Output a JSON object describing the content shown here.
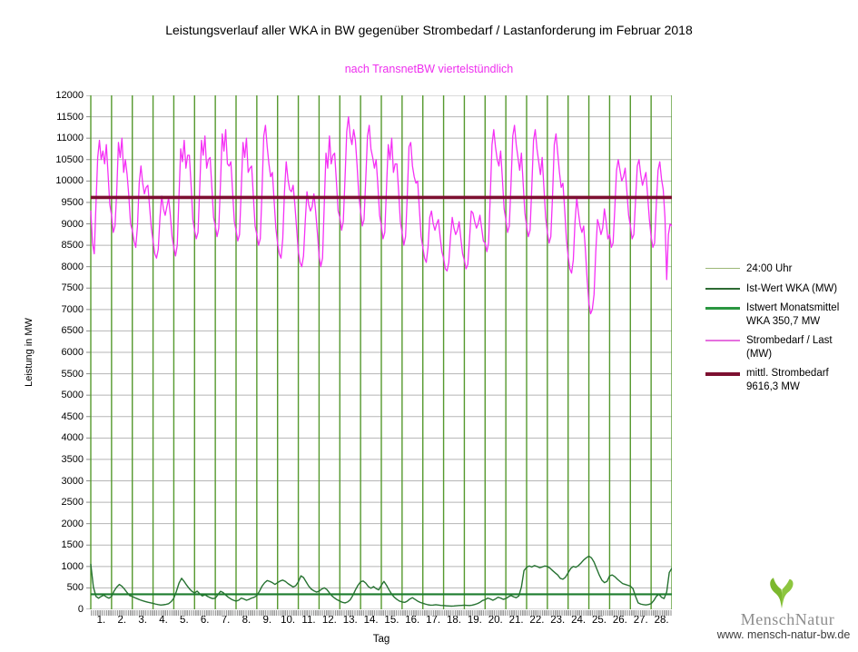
{
  "title": "Leistungsverlauf aller WKA in BW gegenüber  Strombedarf / Lastanforderung im Februar 2018",
  "subtitle": "nach TransnetBW viertelstündlich",
  "subtitle_color": "#ee2fee",
  "axes": {
    "x_label": "Tag",
    "y_label": "Leistung in MW"
  },
  "legend": {
    "entries": [
      {
        "lines": [
          "24:00 Uhr"
        ],
        "color": "#9cb877",
        "thickness": 1
      },
      {
        "lines": [
          "Ist-Wert WKA (MW)"
        ],
        "color": "#2d6a33",
        "thickness": 2
      },
      {
        "lines": [
          "Istwert Monatsmittel",
          "WKA 350,7 MW"
        ],
        "color": "#2a9640",
        "thickness": 3
      },
      {
        "lines": [
          "Strombedarf / Last",
          "(MW)"
        ],
        "color": "#e570de",
        "thickness": 2
      },
      {
        "lines": [
          "mittl. Strombedarf",
          "9616,3 MW"
        ],
        "color": "#7d1031",
        "thickness": 4
      }
    ]
  },
  "footer": {
    "brand": "MenschNatur",
    "website": "www. mensch-natur-bw.de",
    "leaf_color": "#7cb82e"
  },
  "chart_data": {
    "type": "line",
    "title": "Leistungsverlauf aller WKA in BW gegenüber Strombedarf / Lastanforderung im Februar 2018",
    "subtitle": "nach TransnetBW viertelstündlich",
    "xlabel": "Tag",
    "ylabel": "Leistung in MW",
    "ylim": [
      0,
      12000
    ],
    "ytick_step": 500,
    "days": 28,
    "x_day_labels": [
      "1.",
      "2.",
      "3.",
      "4.",
      "5.",
      "6.",
      "7.",
      "8.",
      "9.",
      "10.",
      "11.",
      "12.",
      "13.",
      "14.",
      "15.",
      "16.",
      "17.",
      "18.",
      "19.",
      "20.",
      "21.",
      "22.",
      "23.",
      "24.",
      "25.",
      "26.",
      "27.",
      "28."
    ],
    "grid": {
      "horizontal": true,
      "vertical_per_day": true
    },
    "colors": {
      "grid_h": "#b5b5b5",
      "grid_v": "#55992e",
      "tick": "#8a8a8a"
    },
    "legend_position": "right",
    "series": [
      {
        "name": "Ist-Wert WKA (MW)",
        "kind": "line",
        "color": "#267231",
        "width": 1.4,
        "points_per_day": 8,
        "values": [
          1050,
          520,
          300,
          260,
          300,
          330,
          290,
          260,
          300,
          430,
          520,
          580,
          540,
          470,
          390,
          320,
          300,
          270,
          245,
          220,
          200,
          182,
          165,
          152,
          140,
          122,
          110,
          100,
          106,
          116,
          132,
          180,
          260,
          420,
          610,
          725,
          650,
          560,
          480,
          420,
          380,
          425,
          360,
          312,
          340,
          302,
          272,
          250,
          262,
          340,
          420,
          392,
          332,
          282,
          242,
          212,
          192,
          212,
          262,
          242,
          212,
          232,
          262,
          282,
          320,
          420,
          540,
          620,
          672,
          652,
          622,
          582,
          622,
          662,
          682,
          652,
          602,
          562,
          522,
          552,
          642,
          782,
          742,
          642,
          542,
          472,
          432,
          402,
          422,
          472,
          502,
          462,
          382,
          312,
          262,
          222,
          192,
          162,
          150,
          172,
          222,
          322,
          452,
          562,
          642,
          662,
          612,
          532,
          492,
          532,
          482,
          452,
          562,
          652,
          562,
          452,
          352,
          282,
          232,
          192,
          172,
          162,
          192,
          242,
          272,
          232,
          192,
          162,
          142,
          122,
          106,
          96,
          100,
          108,
          100,
          92,
          88,
          82,
          78,
          74,
          78,
          84,
          88,
          92,
          96,
          92,
          88,
          96,
          112,
          132,
          162,
          205,
          225,
          262,
          242,
          212,
          242,
          282,
          262,
          232,
          252,
          292,
          322,
          292,
          272,
          312,
          520,
          905,
          980,
          1012,
          988,
          1022,
          1002,
          972,
          988,
          1012,
          1002,
          962,
          905,
          852,
          802,
          722,
          702,
          752,
          852,
          952,
          1002,
          982,
          1022,
          1082,
          1152,
          1202,
          1242,
          1202,
          1102,
          952,
          802,
          682,
          622,
          652,
          782,
          802,
          762,
          702,
          652,
          602,
          582,
          562,
          542,
          482,
          302,
          152,
          122,
          110,
          102,
          112,
          132,
          202,
          302,
          352,
          282,
          252,
          402,
          860,
          960
        ]
      },
      {
        "name": "Istwert Monatsmittel WKA",
        "kind": "hline",
        "value": 350.7,
        "color": "#1d7c2e",
        "width": 2.2
      },
      {
        "name": "Strombedarf / Last (MW)",
        "kind": "line",
        "color": "#f531f5",
        "width": 1.3,
        "points_per_day": 12,
        "values": [
          9300,
          8550,
          8300,
          9450,
          10550,
          10950,
          10500,
          10700,
          10400,
          10850,
          10150,
          9450,
          9200,
          8800,
          8950,
          9750,
          10900,
          10550,
          11000,
          10200,
          10500,
          10150,
          9650,
          9000,
          8850,
          8600,
          8450,
          8950,
          9950,
          10350,
          9950,
          9700,
          9850,
          9900,
          9400,
          8900,
          8600,
          8300,
          8200,
          8400,
          9150,
          9650,
          9350,
          9200,
          9400,
          9600,
          9200,
          8700,
          8450,
          8250,
          8500,
          9650,
          10750,
          10450,
          10950,
          10300,
          10600,
          10600,
          9900,
          9100,
          8850,
          8650,
          8800,
          9850,
          10950,
          10600,
          11050,
          10300,
          10500,
          10550,
          9850,
          9150,
          8950,
          8700,
          8900,
          9950,
          11100,
          10700,
          11200,
          10400,
          10350,
          10450,
          9750,
          9050,
          8850,
          8600,
          8750,
          9800,
          10900,
          10550,
          11000,
          10200,
          10300,
          10350,
          9650,
          8950,
          8750,
          8500,
          8650,
          9750,
          11050,
          11300,
          10800,
          10400,
          10100,
          10200,
          9550,
          8900,
          8550,
          8300,
          8200,
          8650,
          9750,
          10450,
          10050,
          9800,
          9750,
          9900,
          9450,
          8900,
          8350,
          8100,
          8000,
          8250,
          9050,
          9750,
          9450,
          9300,
          9400,
          9700,
          9300,
          8800,
          8250,
          8000,
          8200,
          9450,
          10650,
          10300,
          11050,
          10400,
          10600,
          10650,
          10000,
          9300,
          9150,
          8850,
          9050,
          10050,
          11150,
          11500,
          11050,
          10850,
          11200,
          10950,
          10350,
          9650,
          9300,
          8950,
          9100,
          10050,
          11050,
          11300,
          10750,
          10550,
          10300,
          10500,
          9900,
          9200,
          8950,
          8650,
          8800,
          9850,
          10850,
          10500,
          11000,
          10200,
          10400,
          10400,
          9750,
          9050,
          8800,
          8500,
          8700,
          9650,
          10800,
          10900,
          10350,
          10100,
          9950,
          10000,
          9350,
          8700,
          8450,
          8200,
          8100,
          8450,
          9150,
          9300,
          9000,
          8850,
          9000,
          9100,
          8700,
          8350,
          8200,
          7950,
          7900,
          8100,
          8700,
          9150,
          8900,
          8750,
          8850,
          9050,
          8650,
          8300,
          8150,
          7950,
          8050,
          8650,
          9300,
          9250,
          9050,
          8900,
          9000,
          9200,
          8900,
          8600,
          8550,
          8350,
          8550,
          9650,
          10850,
          11200,
          10800,
          10500,
          10350,
          10700,
          10050,
          9350,
          9100,
          8800,
          8950,
          9950,
          11050,
          11300,
          10850,
          10550,
          10250,
          10650,
          9950,
          9250,
          8950,
          8700,
          8850,
          9850,
          10950,
          11200,
          10750,
          10450,
          10150,
          10550,
          9850,
          9150,
          8800,
          8550,
          8700,
          9650,
          10850,
          11100,
          10650,
          10200,
          9850,
          9950,
          9350,
          8650,
          8250,
          7950,
          7850,
          8150,
          9050,
          9600,
          9250,
          8950,
          8800,
          8950,
          8400,
          7700,
          7150,
          6900,
          7000,
          7350,
          8350,
          9100,
          8950,
          8750,
          8900,
          9350,
          9050,
          8650,
          8750,
          8450,
          8550,
          9350,
          10250,
          10500,
          10250,
          10000,
          10100,
          10300,
          9750,
          9200,
          8950,
          8650,
          8750,
          9550,
          10350,
          10500,
          10150,
          9900,
          10050,
          10200,
          9650,
          9100,
          8700,
          8450,
          8550,
          9450,
          10250,
          10450,
          10050,
          9800,
          9150,
          7700,
          8750,
          9000,
          8950
        ]
      },
      {
        "name": "mittl. Strombedarf",
        "kind": "hline",
        "value": 9616.3,
        "color": "#7d1031",
        "width": 3.6
      }
    ]
  }
}
